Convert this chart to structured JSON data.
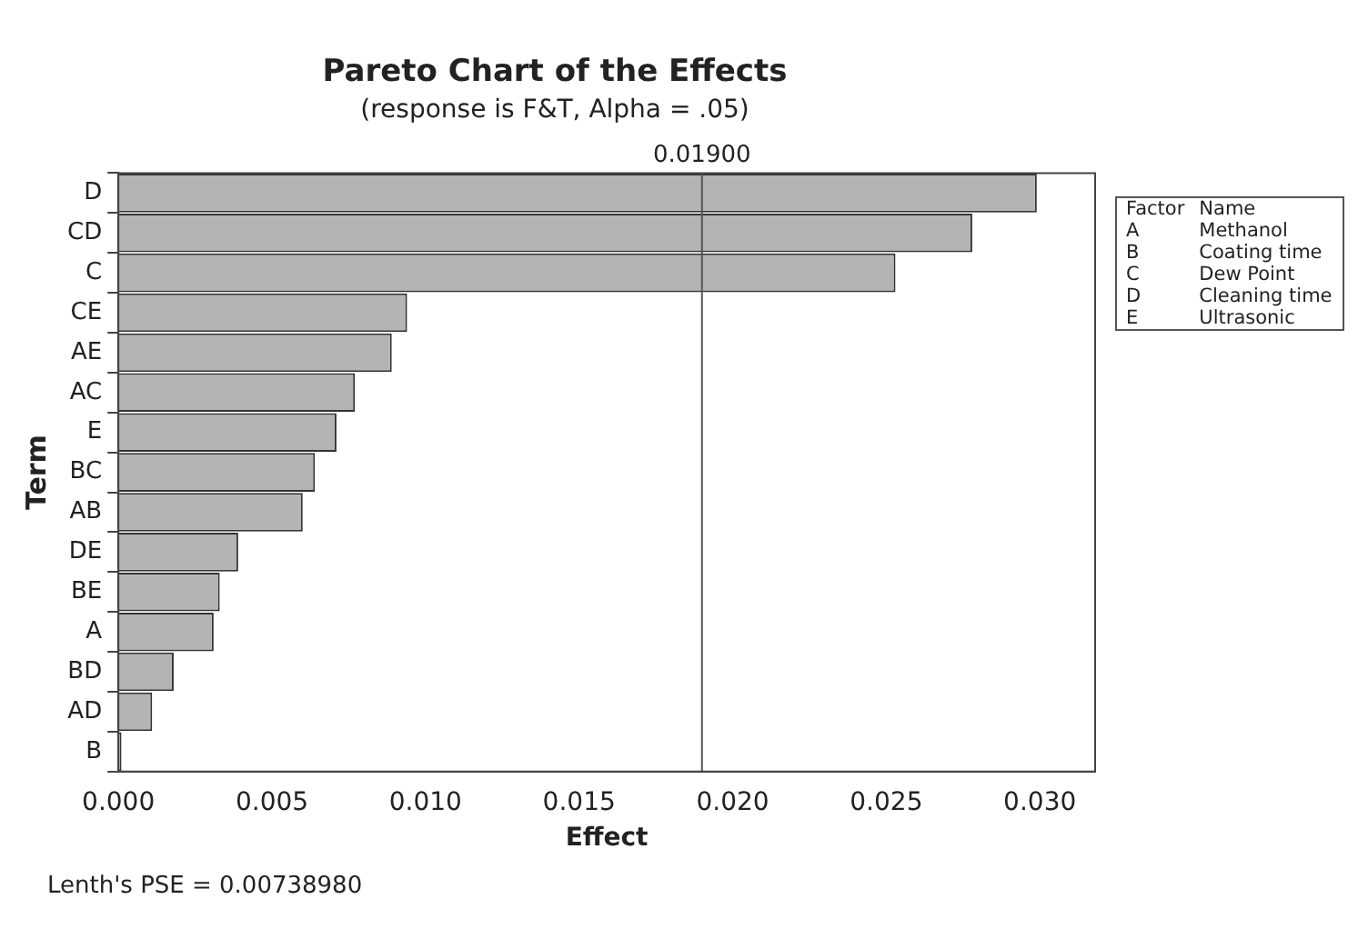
{
  "chart_data": {
    "type": "bar",
    "orientation": "horizontal",
    "title": "Pareto Chart of the Effects",
    "subtitle": "(response is F&T, Alpha = .05)",
    "xlabel": "Effect",
    "ylabel": "Term",
    "categories": [
      "D",
      "CD",
      "C",
      "CE",
      "AE",
      "AC",
      "E",
      "BC",
      "AB",
      "DE",
      "BE",
      "A",
      "BD",
      "AD",
      "B"
    ],
    "values": [
      0.0299,
      0.0278,
      0.0253,
      0.0094,
      0.0089,
      0.0077,
      0.0071,
      0.0064,
      0.006,
      0.0039,
      0.0033,
      0.0031,
      0.0018,
      0.0011,
      0.0001
    ],
    "color": "#b4b4b4",
    "xlim": [
      0,
      0.0318
    ],
    "xticks": [
      {
        "value": 0,
        "label": "0.000"
      },
      {
        "value": 0.005,
        "label": "0.005"
      },
      {
        "value": 0.01,
        "label": "0.010"
      },
      {
        "value": 0.015,
        "label": "0.015"
      },
      {
        "value": 0.02,
        "label": "0.020"
      },
      {
        "value": 0.025,
        "label": "0.025"
      },
      {
        "value": 0.03,
        "label": "0.030"
      }
    ],
    "ref_lines": [
      {
        "axis": "x",
        "value": 0.019,
        "label": "0.01900",
        "color": "#555555"
      }
    ],
    "legend": false,
    "grid": false,
    "annotations": [
      "Lenth's PSE = 0.00738980",
      "Factor",
      "Name",
      "A",
      "Methanol",
      "B",
      "Coating time",
      "C",
      "Dew Point",
      "D",
      "Cleaning time",
      "E",
      "Ultrasonic"
    ]
  }
}
